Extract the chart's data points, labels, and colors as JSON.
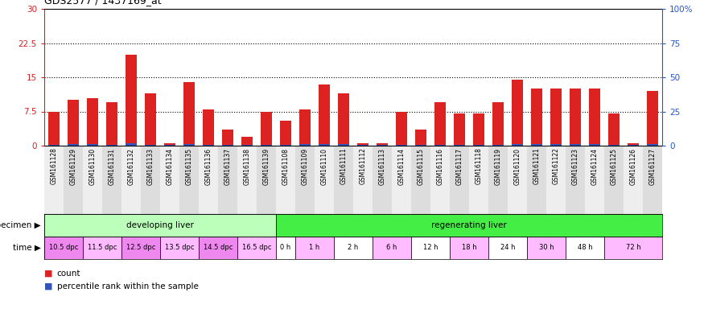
{
  "title": "GDS2577 / 1437169_at",
  "samples": [
    "GSM161128",
    "GSM161129",
    "GSM161130",
    "GSM161131",
    "GSM161132",
    "GSM161133",
    "GSM161134",
    "GSM161135",
    "GSM161136",
    "GSM161137",
    "GSM161138",
    "GSM161139",
    "GSM161108",
    "GSM161109",
    "GSM161110",
    "GSM161111",
    "GSM161112",
    "GSM161113",
    "GSM161114",
    "GSM161115",
    "GSM161116",
    "GSM161117",
    "GSM161118",
    "GSM161119",
    "GSM161120",
    "GSM161121",
    "GSM161122",
    "GSM161123",
    "GSM161124",
    "GSM161125",
    "GSM161126",
    "GSM161127"
  ],
  "count_values": [
    7.5,
    10.0,
    10.5,
    9.5,
    20.0,
    11.5,
    0.5,
    14.0,
    8.0,
    3.5,
    2.0,
    7.5,
    5.5,
    8.0,
    13.5,
    11.5,
    0.5,
    0.5,
    7.5,
    3.5,
    9.5,
    7.0,
    7.0,
    9.5,
    14.5,
    12.5,
    12.5,
    12.5,
    12.5,
    7.0,
    0.5,
    12.0
  ],
  "percentile_values": [
    0.7,
    1.0,
    1.0,
    0.3,
    1.5,
    0.8,
    0.5,
    1.2,
    0.8,
    0.6,
    0.4,
    0.7,
    0.6,
    0.9,
    1.2,
    1.1,
    0.4,
    0.3,
    0.6,
    0.4,
    0.8,
    0.5,
    0.6,
    0.8,
    1.1,
    0.9,
    0.9,
    0.9,
    0.9,
    0.6,
    0.3,
    0.9
  ],
  "bar_color_red": "#dd2222",
  "bar_color_blue": "#3355bb",
  "ylim_left": [
    0,
    30
  ],
  "ylim_right": [
    0,
    100
  ],
  "yticks_left": [
    0,
    7.5,
    15,
    22.5,
    30
  ],
  "yticks_left_labels": [
    "0",
    "7.5",
    "15",
    "22.5",
    "30"
  ],
  "yticks_right": [
    0,
    25,
    50,
    75,
    100
  ],
  "yticks_right_labels": [
    "0",
    "25",
    "50",
    "75",
    "100%"
  ],
  "grid_values": [
    7.5,
    15,
    22.5
  ],
  "specimen_groups": [
    {
      "label": "developing liver",
      "start": 0,
      "end": 12,
      "color": "#bbffbb"
    },
    {
      "label": "regenerating liver",
      "start": 12,
      "end": 32,
      "color": "#44ee44"
    }
  ],
  "time_groups": [
    {
      "label": "10.5 dpc",
      "start": 0,
      "end": 2,
      "color": "#ee88ee"
    },
    {
      "label": "11.5 dpc",
      "start": 2,
      "end": 4,
      "color": "#ffbbff"
    },
    {
      "label": "12.5 dpc",
      "start": 4,
      "end": 6,
      "color": "#ee88ee"
    },
    {
      "label": "13.5 dpc",
      "start": 6,
      "end": 8,
      "color": "#ffbbff"
    },
    {
      "label": "14.5 dpc",
      "start": 8,
      "end": 10,
      "color": "#ee88ee"
    },
    {
      "label": "16.5 dpc",
      "start": 10,
      "end": 12,
      "color": "#ffbbff"
    },
    {
      "label": "0 h",
      "start": 12,
      "end": 13,
      "color": "#ffffff"
    },
    {
      "label": "1 h",
      "start": 13,
      "end": 15,
      "color": "#ffbbff"
    },
    {
      "label": "2 h",
      "start": 15,
      "end": 17,
      "color": "#ffffff"
    },
    {
      "label": "6 h",
      "start": 17,
      "end": 19,
      "color": "#ffbbff"
    },
    {
      "label": "12 h",
      "start": 19,
      "end": 21,
      "color": "#ffffff"
    },
    {
      "label": "18 h",
      "start": 21,
      "end": 23,
      "color": "#ffbbff"
    },
    {
      "label": "24 h",
      "start": 23,
      "end": 25,
      "color": "#ffffff"
    },
    {
      "label": "30 h",
      "start": 25,
      "end": 27,
      "color": "#ffbbff"
    },
    {
      "label": "48 h",
      "start": 27,
      "end": 29,
      "color": "#ffffff"
    },
    {
      "label": "72 h",
      "start": 29,
      "end": 32,
      "color": "#ffbbff"
    }
  ],
  "specimen_label": "specimen",
  "time_label": "time",
  "legend_count": "count",
  "legend_percentile": "percentile rank within the sample",
  "bg_color": "#ffffff",
  "plot_bg": "#ffffff",
  "axis_color_left": "#cc2222",
  "axis_color_right": "#2255cc",
  "col_bg_even": "#dddddd",
  "col_bg_odd": "#eeeeee"
}
